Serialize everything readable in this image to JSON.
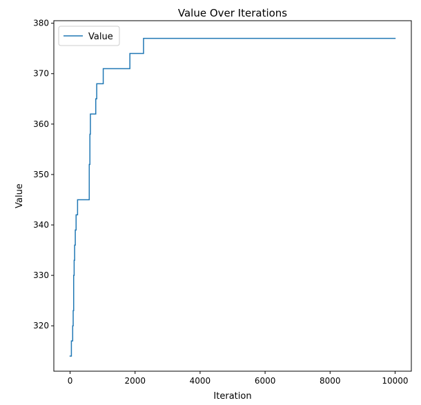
{
  "chart_data": {
    "type": "line",
    "title": "Value Over Iterations",
    "xlabel": "Iteration",
    "ylabel": "Value",
    "xlim": [
      -500,
      10500
    ],
    "ylim": [
      311,
      380.5
    ],
    "xticks": [
      0,
      2000,
      4000,
      6000,
      8000,
      10000
    ],
    "yticks": [
      320,
      330,
      340,
      350,
      360,
      370,
      380
    ],
    "grid": false,
    "legend": {
      "placement": "top-left",
      "entries": [
        "Value"
      ]
    },
    "series": [
      {
        "name": "Value",
        "color": "#1f77b4",
        "step": "post",
        "x": [
          0,
          40,
          80,
          95,
          110,
          125,
          140,
          160,
          185,
          230,
          590,
          610,
          625,
          790,
          820,
          1020,
          1840,
          2260,
          10000
        ],
        "y": [
          314,
          317,
          320,
          323,
          330,
          333,
          336,
          339,
          342,
          345,
          352,
          358,
          362,
          365,
          368,
          371,
          374,
          377,
          377
        ]
      }
    ]
  }
}
